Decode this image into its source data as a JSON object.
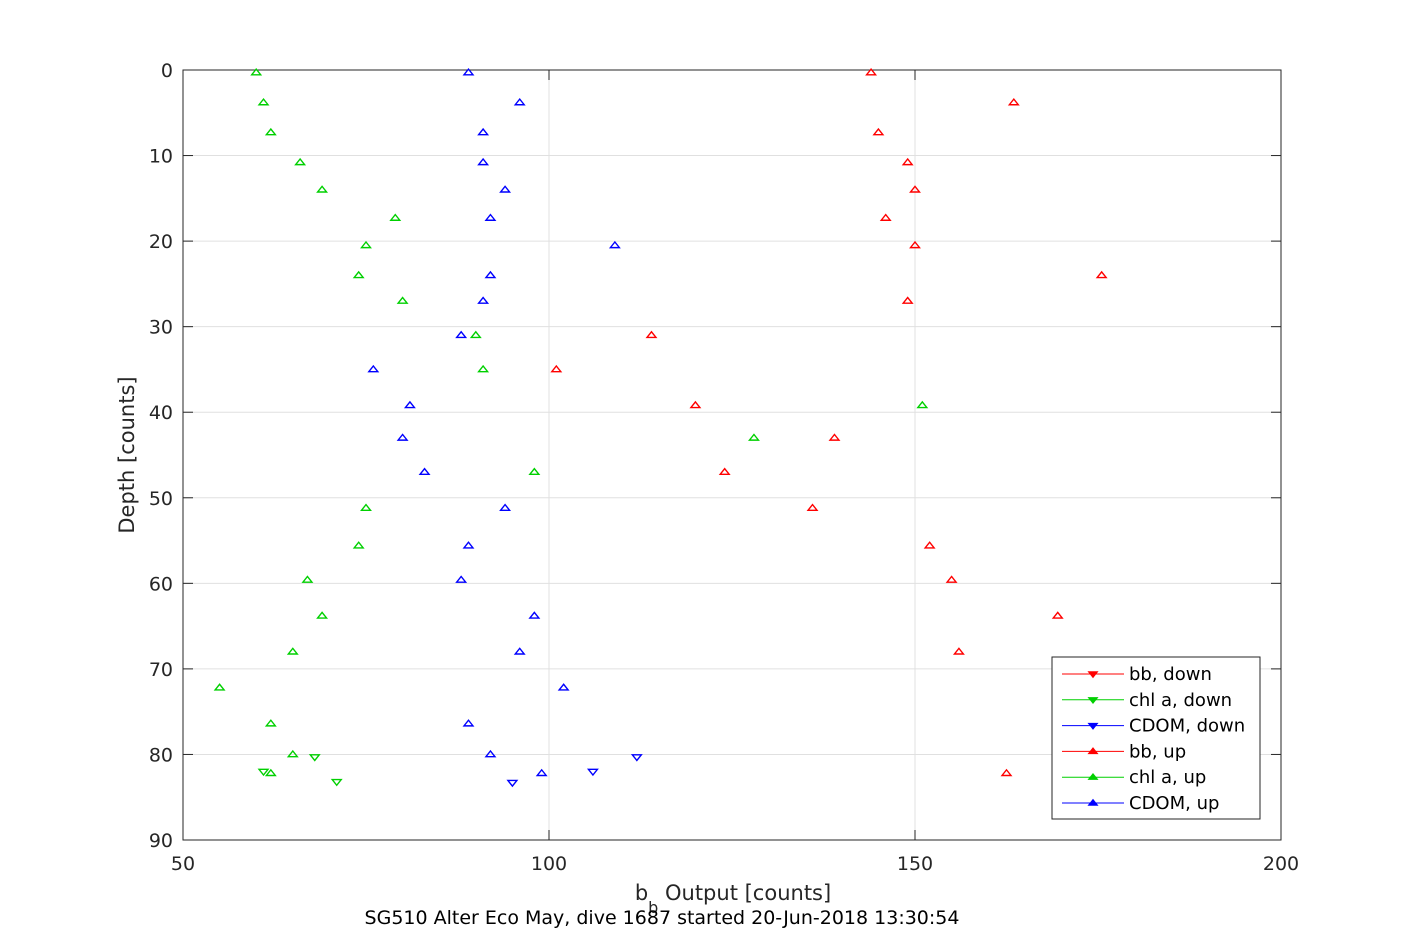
{
  "chart_data": {
    "type": "scatter",
    "title": "",
    "xlabel": "b",
    "xlabel_subscript": "b",
    "xlabel_rest": " Output [counts]",
    "ylabel": "Depth [counts]",
    "caption": "SG510 Alter Eco May, dive 1687 started 20-Jun-2018 13:30:54",
    "xlim": [
      50,
      200
    ],
    "ylim": [
      0,
      90
    ],
    "y_reversed": true,
    "xticks": [
      50,
      100,
      150,
      200
    ],
    "yticks": [
      0,
      10,
      20,
      30,
      40,
      50,
      60,
      70,
      80,
      90
    ],
    "grid": true,
    "legend_position": "bottom-right",
    "series": [
      {
        "name": "bb, down",
        "color": "#ff0000",
        "marker": "triangle-down",
        "points": []
      },
      {
        "name": "chl a, down",
        "color": "#00d000",
        "marker": "triangle-down",
        "points": [
          [
            61,
            82
          ],
          [
            68,
            80.3
          ],
          [
            71,
            83.2
          ]
        ]
      },
      {
        "name": "CDOM, down",
        "color": "#0000ff",
        "marker": "triangle-down",
        "points": [
          [
            95,
            83.3
          ],
          [
            106,
            82
          ],
          [
            112,
            80.3
          ]
        ]
      },
      {
        "name": "bb, up",
        "color": "#ff0000",
        "marker": "triangle-up",
        "points": [
          [
            144,
            0.3
          ],
          [
            163.5,
            3.8
          ],
          [
            145,
            7.3
          ],
          [
            149,
            10.8
          ],
          [
            150,
            14
          ],
          [
            146,
            17.3
          ],
          [
            150,
            20.5
          ],
          [
            175.5,
            24
          ],
          [
            149,
            27
          ],
          [
            114,
            31
          ],
          [
            101,
            35
          ],
          [
            120,
            39.2
          ],
          [
            139,
            43
          ],
          [
            124,
            47
          ],
          [
            136,
            51.2
          ],
          [
            152,
            55.6
          ],
          [
            155,
            59.6
          ],
          [
            169.5,
            63.8
          ],
          [
            156,
            68
          ],
          [
            162.5,
            82.2
          ]
        ]
      },
      {
        "name": "chl a, up",
        "color": "#00d000",
        "marker": "triangle-up",
        "points": [
          [
            60,
            0.3
          ],
          [
            61,
            3.8
          ],
          [
            62,
            7.3
          ],
          [
            66,
            10.8
          ],
          [
            69,
            14
          ],
          [
            79,
            17.3
          ],
          [
            75,
            20.5
          ],
          [
            74,
            24
          ],
          [
            80,
            27
          ],
          [
            90,
            31
          ],
          [
            91,
            35
          ],
          [
            151,
            39.2
          ],
          [
            128,
            43
          ],
          [
            98,
            47
          ],
          [
            75,
            51.2
          ],
          [
            74,
            55.6
          ],
          [
            67,
            59.6
          ],
          [
            69,
            63.8
          ],
          [
            65,
            68
          ],
          [
            55,
            72.2
          ],
          [
            62,
            76.4
          ],
          [
            65,
            80
          ],
          [
            62,
            82.2
          ]
        ]
      },
      {
        "name": "CDOM, up",
        "color": "#0000ff",
        "marker": "triangle-up",
        "points": [
          [
            89,
            0.3
          ],
          [
            96,
            3.8
          ],
          [
            91,
            7.3
          ],
          [
            91,
            10.8
          ],
          [
            94,
            14
          ],
          [
            92,
            17.3
          ],
          [
            109,
            20.5
          ],
          [
            92,
            24
          ],
          [
            91,
            27
          ],
          [
            88,
            31
          ],
          [
            76,
            35
          ],
          [
            81,
            39.2
          ],
          [
            80,
            43
          ],
          [
            83,
            47
          ],
          [
            94,
            51.2
          ],
          [
            89,
            55.6
          ],
          [
            88,
            59.6
          ],
          [
            98,
            63.8
          ],
          [
            96,
            68
          ],
          [
            102,
            72.2
          ],
          [
            89,
            76.4
          ],
          [
            92,
            80
          ],
          [
            99,
            82.2
          ]
        ]
      }
    ]
  }
}
